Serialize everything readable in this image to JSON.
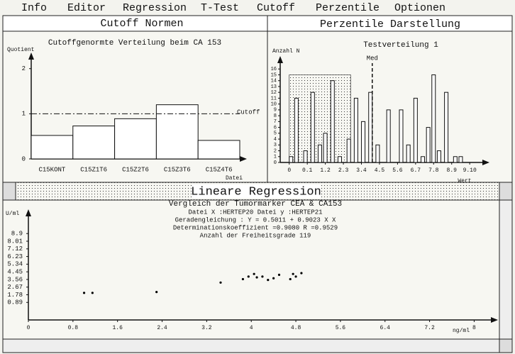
{
  "menu": [
    "Info",
    "Editor",
    "Regression",
    "T-Test",
    "Cutoff",
    "Perzentile",
    "Optionen"
  ],
  "windows": [
    {
      "title": "Cutoff Normen"
    },
    {
      "title": "Perzentile Darstellung"
    },
    {
      "title": "Lineare Regression"
    }
  ],
  "chart_data": [
    {
      "type": "bar",
      "title": "Cutoffgenormte Verteilung beim CA 153",
      "y_label": "Quotient",
      "x_label": "Datei",
      "categories": [
        "C15KONT",
        "C15Z1T6",
        "C15Z2T6",
        "C15Z3T6",
        "C15Z4T6"
      ],
      "values": [
        0.52,
        0.73,
        0.89,
        1.2,
        0.41
      ],
      "color": "#ffffff",
      "ylim": [
        0,
        2.2
      ],
      "yticks": [
        0,
        1,
        2
      ],
      "cutoff": 1,
      "cutoff_label": "Cutoff"
    },
    {
      "type": "bar",
      "title": "Testverteilung 1",
      "y_label": "Anzahl N",
      "x_label": "Wert",
      "x": [
        0.1,
        0.4,
        0.9,
        1.3,
        1.7,
        2.0,
        2.4,
        2.8,
        3.3,
        3.7,
        4.1,
        4.5,
        4.9,
        5.5,
        6.2,
        6.6,
        7.0,
        7.4,
        7.7,
        8.0,
        8.3,
        8.7,
        9.2,
        9.5
      ],
      "values": [
        1,
        11,
        2,
        12,
        3,
        5,
        14,
        1,
        4,
        11,
        7,
        12,
        3,
        9,
        9,
        3,
        11,
        1,
        6,
        15,
        2,
        12,
        1,
        1
      ],
      "color": "#ffffff",
      "xlim": [
        -0.5,
        10.7
      ],
      "ylim": [
        0,
        17
      ],
      "xticks": [
        0,
        {
          "value": 1,
          "label": "0.1"
        },
        {
          "value": 2,
          "label": "1.2"
        },
        {
          "value": 3,
          "label": "2.3"
        },
        {
          "value": 4,
          "label": "3.4"
        },
        {
          "value": 5,
          "label": "4.5"
        },
        {
          "value": 6,
          "label": "5.6"
        },
        {
          "value": 7,
          "label": "6.7"
        },
        {
          "value": 8,
          "label": "7.8"
        },
        {
          "value": 9,
          "label": "8.9"
        },
        {
          "value": 10,
          "label": "9.10"
        }
      ],
      "yticks": [
        0,
        1,
        2,
        3,
        4,
        5,
        6,
        7,
        8,
        9,
        10,
        11,
        12,
        13,
        14,
        15,
        16
      ],
      "percentile_range": [
        0,
        3.4
      ],
      "percentile_height": 15,
      "median": 4.6,
      "median_label": "Med"
    },
    {
      "type": "scatter",
      "title": "Vergleich der Tumormarker CEA & CA153",
      "y_label": "U/ml",
      "x_label": "ng/ml",
      "annotations": [
        "Datei X :HERTEP20        Datei y :HERTEP21",
        "Geradengleichung : Y = 0.5011 + 0.9023 X X",
        "Determinationskoeffizient =0.9080     R =0.9529",
        "Anzahl der Freiheitsgrade 119"
      ],
      "x": [
        1.0,
        1.15,
        2.3,
        3.45,
        3.85,
        3.95,
        4.05,
        4.1,
        4.2,
        4.3,
        4.4,
        4.5,
        4.7,
        4.8,
        4.9,
        4.75
      ],
      "y": [
        2.0,
        2.0,
        2.1,
        3.2,
        3.6,
        3.9,
        4.2,
        3.8,
        3.9,
        3.5,
        3.7,
        4.1,
        3.6,
        3.9,
        4.3,
        4.2
      ],
      "color": "#000000",
      "xlim": [
        0,
        8.3
      ],
      "ylim": [
        -1.15,
        10.9
      ],
      "xticks": [
        0,
        0.8,
        1.6,
        2.4,
        3.2,
        4,
        4.8,
        5.6,
        6.4,
        7.2,
        8
      ],
      "yticks": [
        0.89,
        1.78,
        2.67,
        3.56,
        4.45,
        5.34,
        6.23,
        7.12,
        8.01,
        8.9
      ]
    }
  ]
}
